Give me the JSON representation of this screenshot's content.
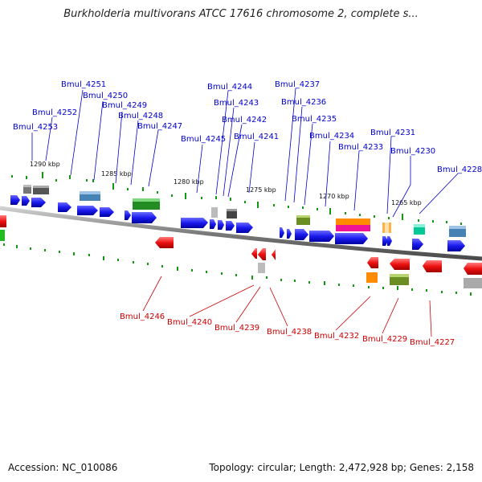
{
  "title": "Burkholderia multivorans ATCC 17616 chromosome 2, complete s...",
  "footer": {
    "accession": "Accession: NC_010086",
    "topology": "Topology: circular; Length: 2,472,928 bp; Genes: 2,158"
  },
  "colors": {
    "forward_label": "#0000cc",
    "reverse_label": "#cc0000",
    "backbone": "#808080",
    "tick": "#119911"
  },
  "scale_ticks": [
    "1290 kbp",
    "1285 kbp",
    "1280 kbp",
    "1275 kbp",
    "1270 kbp",
    "1265 kbp"
  ],
  "forward_genes": [
    "Bmul_4253",
    "Bmul_4252",
    "Bmul_4251",
    "Bmul_4250",
    "Bmul_4249",
    "Bmul_4248",
    "Bmul_4247",
    "Bmul_4245",
    "Bmul_4244",
    "Bmul_4243",
    "Bmul_4242",
    "Bmul_4241",
    "Bmul_4237",
    "Bmul_4236",
    "Bmul_4235",
    "Bmul_4234",
    "Bmul_4233",
    "Bmul_4231",
    "Bmul_4230",
    "Bmul_4228"
  ],
  "reverse_genes": [
    "Bmul_4246",
    "Bmul_4240",
    "Bmul_4239",
    "Bmul_4238",
    "Bmul_4232",
    "Bmul_4229",
    "Bmul_4227"
  ]
}
